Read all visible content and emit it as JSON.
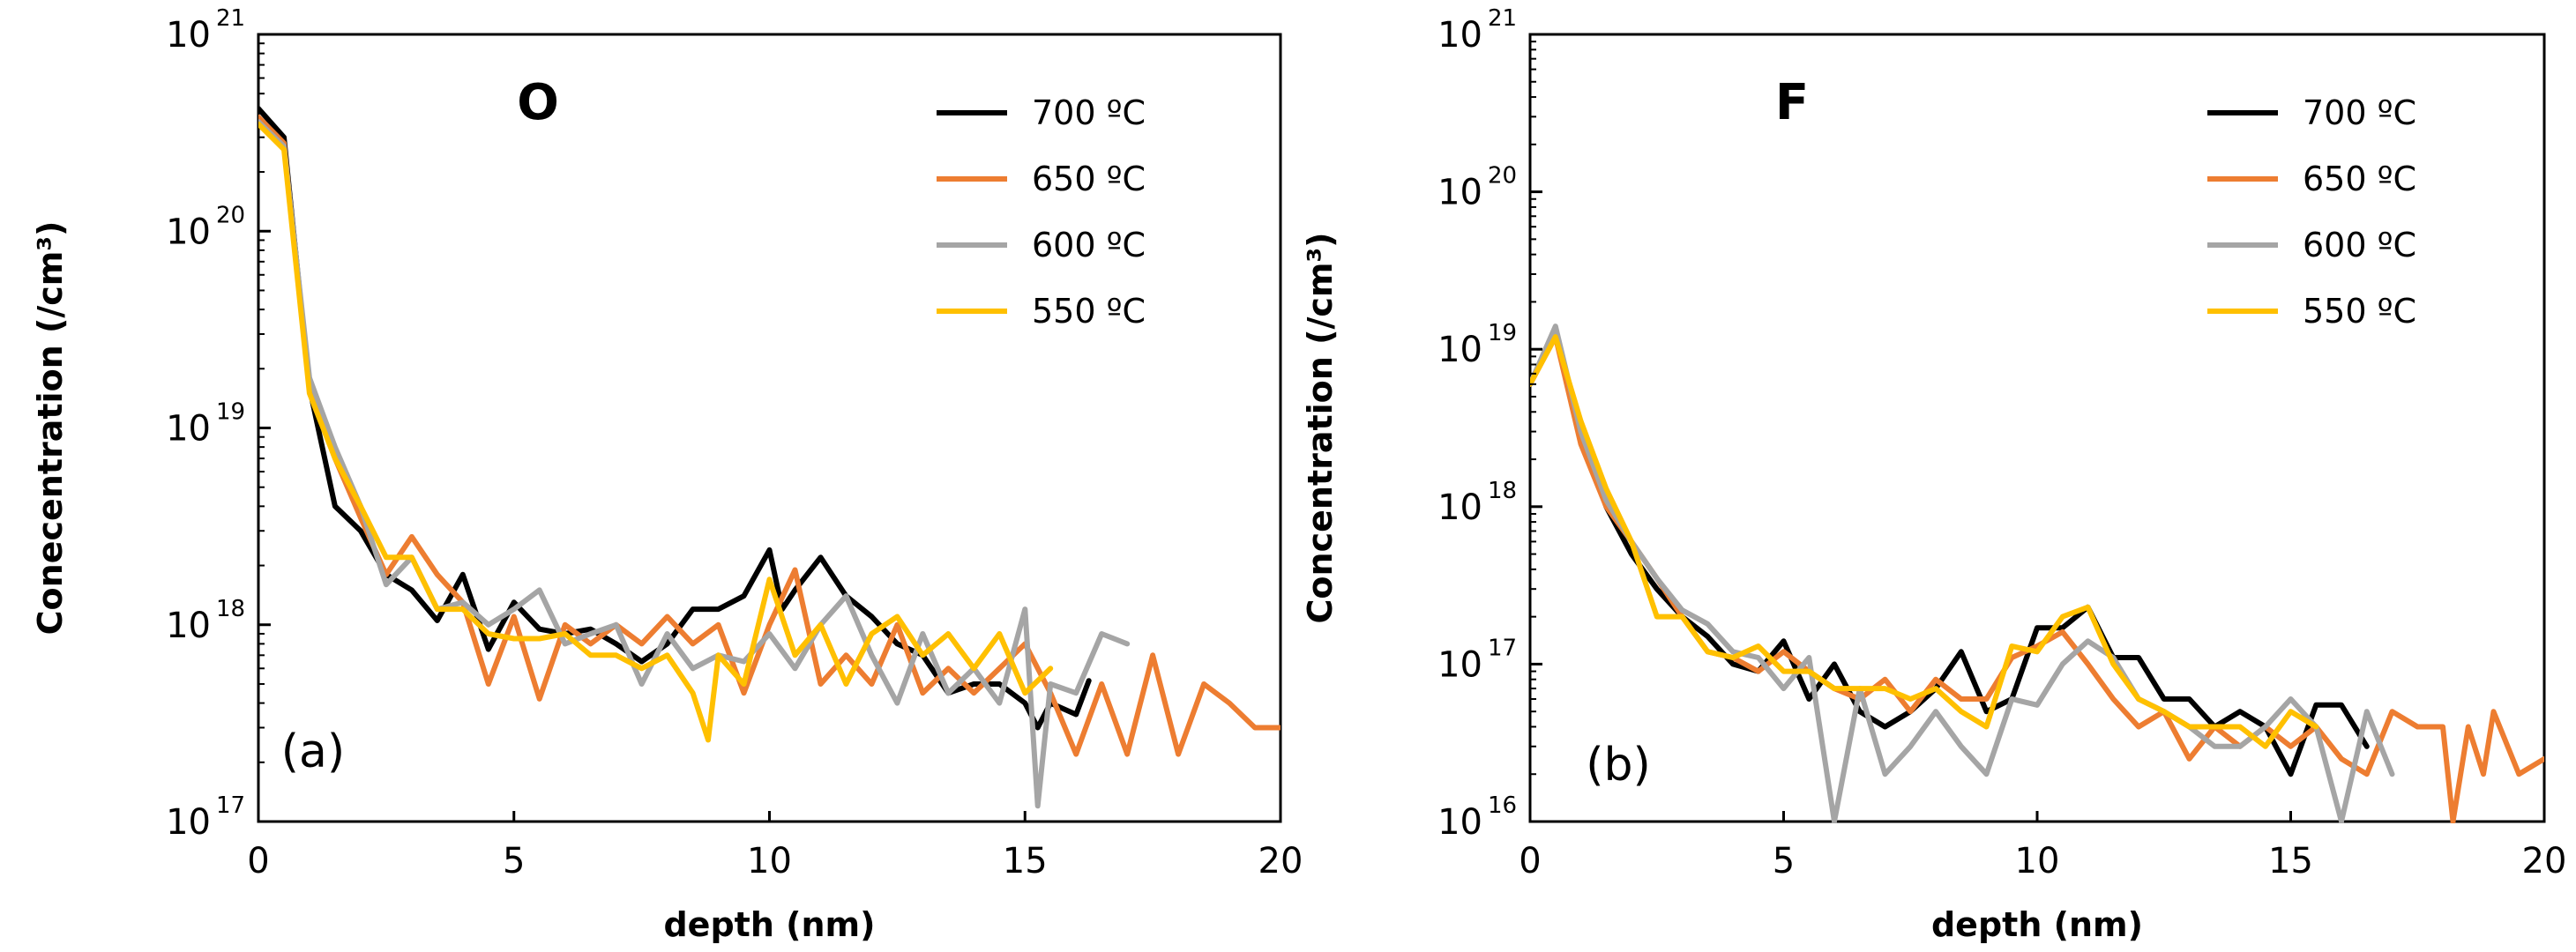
{
  "chart_data": [
    {
      "type": "line",
      "title": "O",
      "panel_label": "(a)",
      "xlabel": "depth (nm)",
      "ylabel": "Conecentration (/cm³)",
      "xlim": [
        0,
        20
      ],
      "ylim": [
        1e+17,
        1e+21
      ],
      "yscale": "log",
      "x_ticks": [
        0,
        5,
        10,
        15,
        20
      ],
      "y_ticks": [
        {
          "base": "10",
          "exp": "17",
          "value": 1e+17
        },
        {
          "base": "10",
          "exp": "18",
          "value": 1e+18
        },
        {
          "base": "10",
          "exp": "19",
          "value": 1e+19
        },
        {
          "base": "10",
          "exp": "20",
          "value": 1e+20
        },
        {
          "base": "10",
          "exp": "21",
          "value": 1e+21
        }
      ],
      "legend_position": "top-right",
      "grid": false,
      "series": [
        {
          "name": "700 ºC",
          "color": "#000000",
          "x": [
            0,
            0.5,
            1,
            1.5,
            2,
            2.5,
            3,
            3.5,
            4,
            4.5,
            5,
            5.5,
            6,
            6.5,
            7,
            7.5,
            8,
            8.5,
            9,
            9.5,
            10,
            10.25,
            10.5,
            11,
            11.5,
            12,
            12.5,
            13,
            13.5,
            14,
            14.5,
            15,
            15.25,
            15.5,
            16,
            16.25
          ],
          "y": [
            4.2e+20,
            3e+20,
            1.6e+19,
            4e+18,
            3e+18,
            1.8e+18,
            1.5e+18,
            1.05e+18,
            1.8e+18,
            7.5e+17,
            1.3e+18,
            9.5e+17,
            9e+17,
            9.5e+17,
            8e+17,
            6.5e+17,
            8e+17,
            1.2e+18,
            1.2e+18,
            1.4e+18,
            2.4e+18,
            1.2e+18,
            1.5e+18,
            2.2e+18,
            1.4e+18,
            1.1e+18,
            8e+17,
            7e+17,
            4.5e+17,
            5e+17,
            5e+17,
            4e+17,
            3e+17,
            4e+17,
            3.5e+17,
            5.2e+17
          ]
        },
        {
          "name": "650 ºC",
          "color": "#ed7d31",
          "x": [
            0,
            0.5,
            1,
            1.5,
            2,
            2.5,
            3,
            3.5,
            4,
            4.5,
            5,
            5.5,
            6,
            6.5,
            7,
            7.5,
            8,
            8.5,
            9,
            9.5,
            10,
            10.5,
            11,
            11.5,
            12,
            12.5,
            13,
            13.5,
            14,
            14.5,
            15,
            15.5,
            16,
            16.5,
            17,
            17.5,
            18,
            18.5,
            19,
            19.5,
            20
          ],
          "y": [
            3.8e+20,
            2.8e+20,
            1.6e+19,
            7e+18,
            3.5e+18,
            1.8e+18,
            2.8e+18,
            1.8e+18,
            1.3e+18,
            5e+17,
            1.1e+18,
            4.2e+17,
            1e+18,
            8e+17,
            1e+18,
            8e+17,
            1.1e+18,
            8e+17,
            1e+18,
            4.5e+17,
            1e+18,
            1.9e+18,
            5e+17,
            7e+17,
            5e+17,
            1e+18,
            4.5e+17,
            6e+17,
            4.5e+17,
            6e+17,
            8e+17,
            4.5e+17,
            2.2e+17,
            5e+17,
            2.2e+17,
            7e+17,
            2.2e+17,
            5e+17,
            4e+17,
            3e+17,
            3e+17
          ]
        },
        {
          "name": "600 ºC",
          "color": "#a5a5a5",
          "x": [
            0,
            0.5,
            1,
            1.5,
            2,
            2.5,
            3,
            3.5,
            4,
            4.5,
            5,
            5.5,
            6,
            6.5,
            7,
            7.5,
            8,
            8.5,
            9,
            9.5,
            10,
            10.5,
            11,
            11.5,
            12,
            12.5,
            13,
            13.5,
            14,
            14.5,
            15,
            15.25,
            15.5,
            16,
            16.5,
            17
          ],
          "y": [
            3.6e+20,
            2.7e+20,
            1.8e+19,
            8e+18,
            4e+18,
            1.6e+18,
            2.2e+18,
            1.2e+18,
            1.3e+18,
            1e+18,
            1.2e+18,
            1.5e+18,
            8e+17,
            9e+17,
            1e+18,
            5e+17,
            9e+17,
            6e+17,
            7e+17,
            6.5e+17,
            9e+17,
            6e+17,
            1e+18,
            1.4e+18,
            7e+17,
            4e+17,
            9e+17,
            4.5e+17,
            6e+17,
            4e+17,
            1.2e+18,
            1.2e+17,
            5e+17,
            4.5e+17,
            9e+17,
            8e+17
          ]
        },
        {
          "name": "550 ºC",
          "color": "#ffc000",
          "x": [
            0,
            0.5,
            1,
            1.5,
            2,
            2.5,
            3,
            3.5,
            4,
            4.5,
            5,
            5.5,
            6,
            6.5,
            7,
            7.5,
            8,
            8.5,
            8.8,
            9,
            9.5,
            10,
            10.5,
            11,
            11.5,
            12,
            12.5,
            13,
            13.5,
            14,
            14.5,
            15,
            15.5
          ],
          "y": [
            3.5e+20,
            2.6e+20,
            1.5e+19,
            7e+18,
            4e+18,
            2.2e+18,
            2.2e+18,
            1.2e+18,
            1.2e+18,
            9e+17,
            8.5e+17,
            8.5e+17,
            9e+17,
            7e+17,
            7e+17,
            6e+17,
            7e+17,
            4.5e+17,
            2.6e+17,
            7e+17,
            5e+17,
            1.7e+18,
            7e+17,
            1e+18,
            5e+17,
            9e+17,
            1.1e+18,
            7e+17,
            9e+17,
            6e+17,
            9e+17,
            4.5e+17,
            6e+17
          ]
        }
      ]
    },
    {
      "type": "line",
      "title": "F",
      "panel_label": "(b)",
      "xlabel": "depth (nm)",
      "ylabel": "Concentration (/cm³)",
      "xlim": [
        0,
        20
      ],
      "ylim": [
        1e+16,
        1e+21
      ],
      "yscale": "log",
      "x_ticks": [
        0,
        5,
        10,
        15,
        20
      ],
      "y_ticks": [
        {
          "base": "10",
          "exp": "16",
          "value": 1e+16
        },
        {
          "base": "10",
          "exp": "17",
          "value": 1e+17
        },
        {
          "base": "10",
          "exp": "18",
          "value": 1e+18
        },
        {
          "base": "10",
          "exp": "19",
          "value": 1e+19
        },
        {
          "base": "10",
          "exp": "20",
          "value": 1e+20
        },
        {
          "base": "10",
          "exp": "21",
          "value": 1e+21
        }
      ],
      "legend_position": "top-right",
      "grid": false,
      "series": [
        {
          "name": "700 ºC",
          "color": "#000000",
          "x": [
            0,
            0.5,
            1,
            1.5,
            2,
            2.5,
            3,
            3.5,
            4,
            4.5,
            5,
            5.5,
            6,
            6.5,
            7,
            7.5,
            8,
            8.5,
            9,
            9.5,
            10,
            10.5,
            11,
            11.5,
            12,
            12.5,
            13,
            13.5,
            14,
            14.5,
            15,
            15.5,
            16,
            16.5
          ],
          "y": [
            6e+18,
            1.3e+19,
            3e+18,
            1e+18,
            5e+17,
            3e+17,
            2e+17,
            1.5e+17,
            1e+17,
            9e+16,
            1.4e+17,
            6e+16,
            1e+17,
            5e+16,
            4e+16,
            5e+16,
            7e+16,
            1.2e+17,
            5e+16,
            6e+16,
            1.7e+17,
            1.7e+17,
            2.3e+17,
            1.1e+17,
            1.1e+17,
            6e+16,
            6e+16,
            4e+16,
            5e+16,
            4e+16,
            2e+16,
            5.5e+16,
            5.5e+16,
            3e+16
          ]
        },
        {
          "name": "650 ºC",
          "color": "#ed7d31",
          "x": [
            0,
            0.5,
            1,
            1.5,
            2,
            2.5,
            3,
            3.5,
            4,
            4.5,
            5,
            5.5,
            6,
            6.5,
            7,
            7.5,
            8,
            8.5,
            9,
            9.5,
            10,
            10.5,
            11,
            11.5,
            12,
            12.5,
            13,
            13.5,
            14,
            14.5,
            15,
            15.5,
            16,
            16.5,
            17,
            17.5,
            18,
            18.2,
            18.5,
            18.8,
            19,
            19.5,
            20
          ],
          "y": [
            6e+18,
            1.2e+19,
            2.5e+18,
            1e+18,
            6e+17,
            3.5e+17,
            2e+17,
            1.2e+17,
            1.1e+17,
            9e+16,
            1.2e+17,
            9e+16,
            7e+16,
            6e+16,
            8e+16,
            5e+16,
            8e+16,
            6e+16,
            6e+16,
            1.1e+17,
            1.3e+17,
            1.6e+17,
            1e+17,
            6e+16,
            4e+16,
            5e+16,
            2.5e+16,
            4e+16,
            3e+16,
            4e+16,
            3e+16,
            4e+16,
            2.5e+16,
            2e+16,
            5e+16,
            4e+16,
            4e+16,
            1e+16,
            4e+16,
            2e+16,
            5e+16,
            2e+16,
            2.5e+16
          ]
        },
        {
          "name": "600 ºC",
          "color": "#a5a5a5",
          "x": [
            0,
            0.5,
            1,
            1.5,
            2,
            2.5,
            3,
            3.5,
            4,
            4.5,
            5,
            5.5,
            6,
            6.5,
            7,
            7.5,
            8,
            8.5,
            9,
            9.5,
            10,
            10.5,
            11,
            11.5,
            12,
            12.5,
            13,
            13.5,
            14,
            14.5,
            15,
            15.5,
            16,
            16.5,
            17
          ],
          "y": [
            6e+18,
            1.4e+19,
            3e+18,
            1.1e+18,
            6e+17,
            3.5e+17,
            2.2e+17,
            1.8e+17,
            1.2e+17,
            1.1e+17,
            7e+16,
            1.1e+17,
            1e+16,
            7e+16,
            2e+16,
            3e+16,
            5e+16,
            3e+16,
            2e+16,
            6e+16,
            5.5e+16,
            1e+17,
            1.4e+17,
            1.1e+17,
            6e+16,
            5e+16,
            4e+16,
            3e+16,
            3e+16,
            4e+16,
            6e+16,
            4e+16,
            1e+16,
            5e+16,
            2e+16
          ]
        },
        {
          "name": "550 ºC",
          "color": "#ffc000",
          "x": [
            0,
            0.5,
            1,
            1.5,
            2,
            2.5,
            3,
            3.5,
            4,
            4.5,
            5,
            5.5,
            6,
            6.5,
            7,
            7.5,
            8,
            8.5,
            9,
            9.5,
            10,
            10.5,
            11,
            11.5,
            12,
            12.5,
            13,
            13.5,
            14,
            14.5,
            15,
            15.5
          ],
          "y": [
            6e+18,
            1.2e+19,
            3.5e+18,
            1.3e+18,
            6e+17,
            2e+17,
            2e+17,
            1.2e+17,
            1.1e+17,
            1.3e+17,
            9e+16,
            9e+16,
            7e+16,
            7e+16,
            7e+16,
            6e+16,
            7e+16,
            5e+16,
            4e+16,
            1.3e+17,
            1.2e+17,
            2e+17,
            2.3e+17,
            1e+17,
            6e+16,
            5e+16,
            4e+16,
            4e+16,
            4e+16,
            3e+16,
            5e+16,
            4e+16
          ]
        }
      ]
    }
  ]
}
